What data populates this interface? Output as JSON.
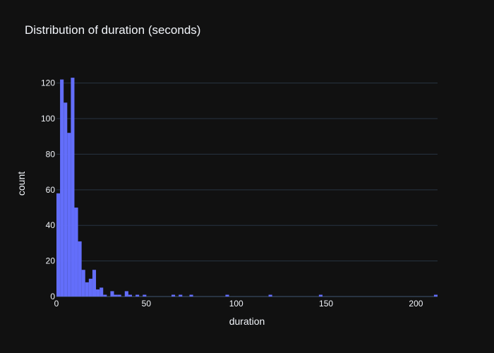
{
  "chart_data": {
    "type": "bar",
    "title": "Distribution of duration (seconds)",
    "xlabel": "duration",
    "ylabel": "count",
    "xlim": [
      0,
      212
    ],
    "ylim": [
      0,
      127
    ],
    "bin_width": 2,
    "xticks": [
      0,
      50,
      100,
      150,
      200
    ],
    "yticks": [
      0,
      20,
      40,
      60,
      80,
      100,
      120
    ],
    "grid": true,
    "legend": "none",
    "colors": {
      "background": "#111111",
      "bar": "#636efa",
      "grid": "#283442",
      "text": "#f2f5fa"
    },
    "bins": [
      {
        "x0": 0,
        "count": 58
      },
      {
        "x0": 2,
        "count": 122
      },
      {
        "x0": 4,
        "count": 109
      },
      {
        "x0": 6,
        "count": 92
      },
      {
        "x0": 8,
        "count": 123
      },
      {
        "x0": 10,
        "count": 50
      },
      {
        "x0": 12,
        "count": 31
      },
      {
        "x0": 14,
        "count": 15
      },
      {
        "x0": 16,
        "count": 8
      },
      {
        "x0": 18,
        "count": 10
      },
      {
        "x0": 20,
        "count": 15
      },
      {
        "x0": 22,
        "count": 4
      },
      {
        "x0": 24,
        "count": 5
      },
      {
        "x0": 26,
        "count": 1
      },
      {
        "x0": 30,
        "count": 3
      },
      {
        "x0": 32,
        "count": 1
      },
      {
        "x0": 34,
        "count": 1
      },
      {
        "x0": 38,
        "count": 3
      },
      {
        "x0": 40,
        "count": 1
      },
      {
        "x0": 44,
        "count": 1
      },
      {
        "x0": 48,
        "count": 1
      },
      {
        "x0": 64,
        "count": 1
      },
      {
        "x0": 68,
        "count": 1
      },
      {
        "x0": 74,
        "count": 1
      },
      {
        "x0": 94,
        "count": 1
      },
      {
        "x0": 118,
        "count": 1
      },
      {
        "x0": 146,
        "count": 1
      },
      {
        "x0": 210,
        "count": 1
      }
    ]
  }
}
